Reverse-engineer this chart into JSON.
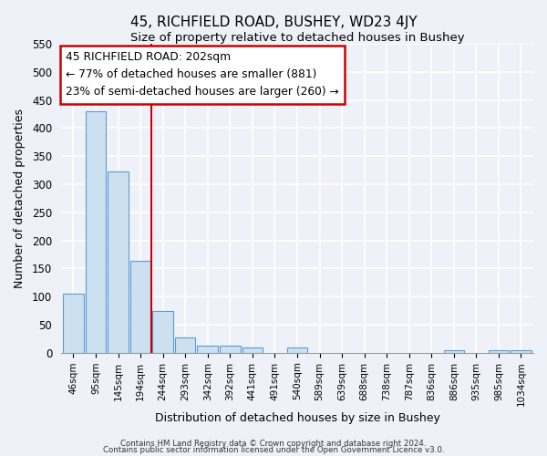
{
  "title": "45, RICHFIELD ROAD, BUSHEY, WD23 4JY",
  "subtitle": "Size of property relative to detached houses in Bushey",
  "xlabel": "Distribution of detached houses by size in Bushey",
  "ylabel": "Number of detached properties",
  "bar_labels": [
    "46sqm",
    "95sqm",
    "145sqm",
    "194sqm",
    "244sqm",
    "293sqm",
    "342sqm",
    "392sqm",
    "441sqm",
    "491sqm",
    "540sqm",
    "589sqm",
    "639sqm",
    "688sqm",
    "738sqm",
    "787sqm",
    "836sqm",
    "886sqm",
    "935sqm",
    "985sqm",
    "1034sqm"
  ],
  "bar_values": [
    105,
    430,
    322,
    163,
    75,
    27,
    12,
    12,
    10,
    0,
    9,
    0,
    0,
    0,
    0,
    0,
    0,
    5,
    0,
    4,
    4
  ],
  "bar_color": "#cce0f0",
  "bar_edge_color": "#5b9bd5",
  "vline_color": "#cc0000",
  "vline_x_index": 3,
  "annotation_line1": "45 RICHFIELD ROAD: 202sqm",
  "annotation_line2": "← 77% of detached houses are smaller (881)",
  "annotation_line3": "23% of semi-detached houses are larger (260) →",
  "annotation_box_color": "#ffffff",
  "annotation_box_edge": "#cc0000",
  "ylim": [
    0,
    550
  ],
  "yticks": [
    0,
    50,
    100,
    150,
    200,
    250,
    300,
    350,
    400,
    450,
    500,
    550
  ],
  "background_color": "#eef2f8",
  "grid_color": "#ffffff",
  "footer_line1": "Contains HM Land Registry data © Crown copyright and database right 2024.",
  "footer_line2": "Contains public sector information licensed under the Open Government Licence v3.0."
}
